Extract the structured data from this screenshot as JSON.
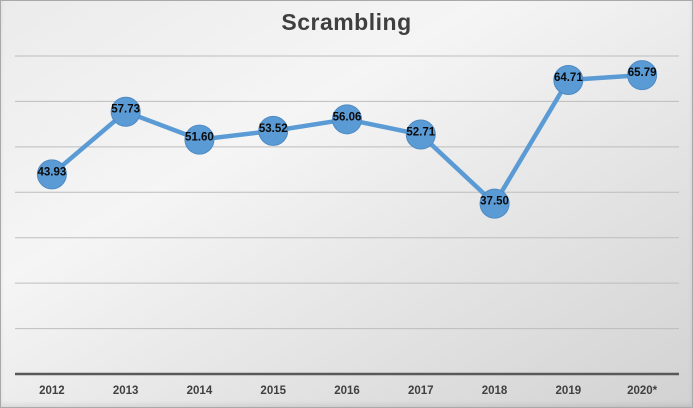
{
  "chart_data": {
    "type": "line",
    "title": "Scrambling",
    "categories": [
      "2012",
      "2013",
      "2014",
      "2015",
      "2016",
      "2017",
      "2018",
      "2019",
      "2020*"
    ],
    "series": [
      {
        "name": "Scrambling",
        "values": [
          43.93,
          57.73,
          51.6,
          53.52,
          56.06,
          52.71,
          37.5,
          64.71,
          65.79
        ],
        "labels": [
          "43.93",
          "57.73",
          "51.60",
          "53.52",
          "56.06",
          "52.71",
          "37.50",
          "64.71",
          "65.79"
        ]
      }
    ],
    "xlabel": "",
    "ylabel": "",
    "ylim": [
      0,
      70
    ],
    "gridline_step": 10,
    "grid": "horizontal",
    "y_axis_labels_visible": false,
    "legend_position": "none",
    "data_label_position": "center-on-marker"
  },
  "colors": {
    "series": "#5b9bd5",
    "marker_edge": "#4e8ac4",
    "gridline": "#bdbdbd",
    "axis": "#595959",
    "title": "#3f3f3f",
    "data_label": "#0a0a0a",
    "tick_label": "#404040",
    "background_light": "#f5f5f5",
    "background_dark": "#d2d2d2",
    "border": "#a9a9a9"
  }
}
